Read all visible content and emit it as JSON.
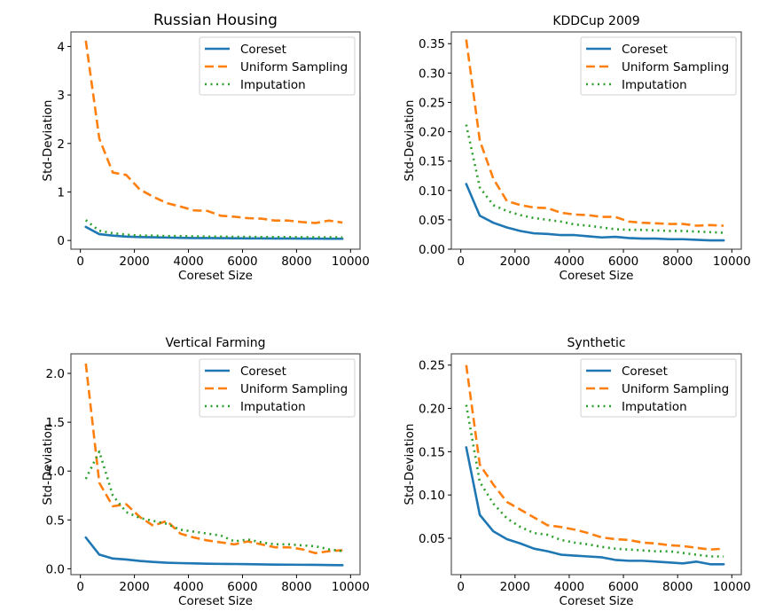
{
  "figure": {
    "legend_labels": [
      "Coreset",
      "Uniform Sampling",
      "Imputation"
    ]
  },
  "chart_data": [
    {
      "type": "line",
      "title": "Russian Housing",
      "xlabel": "Coreset Size",
      "ylabel": "Std-Deviation",
      "xlim": [
        -350,
        10350
      ],
      "ylim": [
        -0.18,
        4.3
      ],
      "xticks": [
        0,
        2000,
        4000,
        6000,
        8000,
        10000
      ],
      "xtick_labels": [
        "0",
        "2000",
        "4000",
        "6000",
        "8000",
        "10000"
      ],
      "yticks": [
        0,
        1,
        2,
        3,
        4
      ],
      "ytick_labels": [
        "0",
        "1",
        "2",
        "3",
        "4"
      ],
      "grid": false,
      "legend": "top-right",
      "x": [
        200,
        700,
        1200,
        1700,
        2200,
        2700,
        3200,
        3700,
        4200,
        4700,
        5200,
        5700,
        6200,
        6700,
        7200,
        7700,
        8200,
        8700,
        9200,
        9700
      ],
      "series": [
        {
          "name": "Coreset",
          "color": "#1f77b4",
          "style": "solid",
          "values": [
            0.28,
            0.13,
            0.1,
            0.08,
            0.07,
            0.065,
            0.06,
            0.055,
            0.05,
            0.05,
            0.048,
            0.045,
            0.043,
            0.042,
            0.04,
            0.04,
            0.038,
            0.037,
            0.036,
            0.035
          ]
        },
        {
          "name": "Uniform Sampling",
          "color": "#ff7f0e",
          "style": "dashed",
          "values": [
            4.12,
            2.1,
            1.4,
            1.35,
            1.05,
            0.9,
            0.77,
            0.7,
            0.62,
            0.61,
            0.51,
            0.49,
            0.46,
            0.45,
            0.41,
            0.41,
            0.38,
            0.36,
            0.41,
            0.37
          ]
        },
        {
          "name": "Imputation",
          "color": "#2ca02c",
          "style": "dotted",
          "values": [
            0.42,
            0.2,
            0.15,
            0.12,
            0.1,
            0.1,
            0.09,
            0.09,
            0.085,
            0.08,
            0.08,
            0.075,
            0.075,
            0.07,
            0.07,
            0.07,
            0.068,
            0.066,
            0.065,
            0.065
          ]
        }
      ]
    },
    {
      "type": "line",
      "title": "KDDCup 2009",
      "xlabel": "Coreset Size",
      "ylabel": "Std-Deviation",
      "xlim": [
        -350,
        10350
      ],
      "ylim": [
        0.0,
        0.37
      ],
      "xticks": [
        0,
        2000,
        4000,
        6000,
        8000,
        10000
      ],
      "xtick_labels": [
        "0",
        "2000",
        "4000",
        "6000",
        "8000",
        "10000"
      ],
      "yticks": [
        0.0,
        0.05,
        0.1,
        0.15,
        0.2,
        0.25,
        0.3,
        0.35
      ],
      "ytick_labels": [
        "0.00",
        "0.05",
        "0.10",
        "0.15",
        "0.20",
        "0.25",
        "0.30",
        "0.35"
      ],
      "grid": false,
      "legend": "top-right",
      "x": [
        200,
        700,
        1200,
        1700,
        2200,
        2700,
        3200,
        3700,
        4200,
        4700,
        5200,
        5700,
        6200,
        6700,
        7200,
        7700,
        8200,
        8700,
        9200,
        9700
      ],
      "series": [
        {
          "name": "Coreset",
          "color": "#1f77b4",
          "style": "solid",
          "values": [
            0.111,
            0.057,
            0.045,
            0.037,
            0.031,
            0.027,
            0.026,
            0.024,
            0.024,
            0.022,
            0.02,
            0.021,
            0.019,
            0.018,
            0.018,
            0.017,
            0.017,
            0.016,
            0.015,
            0.015
          ]
        },
        {
          "name": "Uniform Sampling",
          "color": "#ff7f0e",
          "style": "dashed",
          "values": [
            0.357,
            0.185,
            0.12,
            0.082,
            0.075,
            0.071,
            0.07,
            0.062,
            0.059,
            0.058,
            0.055,
            0.055,
            0.047,
            0.045,
            0.044,
            0.043,
            0.043,
            0.04,
            0.041,
            0.04
          ]
        },
        {
          "name": "Imputation",
          "color": "#2ca02c",
          "style": "dotted",
          "values": [
            0.212,
            0.105,
            0.075,
            0.065,
            0.058,
            0.053,
            0.05,
            0.047,
            0.042,
            0.04,
            0.037,
            0.034,
            0.033,
            0.033,
            0.032,
            0.031,
            0.031,
            0.03,
            0.029,
            0.028
          ]
        }
      ]
    },
    {
      "type": "line",
      "title": "Vertical Farming",
      "xlabel": "Coreset Size",
      "ylabel": "Std-Deviation",
      "xlim": [
        -350,
        10350
      ],
      "ylim": [
        -0.06,
        2.2
      ],
      "xticks": [
        0,
        2000,
        4000,
        6000,
        8000,
        10000
      ],
      "xtick_labels": [
        "0",
        "2000",
        "4000",
        "6000",
        "8000",
        "10000"
      ],
      "yticks": [
        0.0,
        0.5,
        1.0,
        1.5,
        2.0
      ],
      "ytick_labels": [
        "0.0",
        "0.5",
        "1.0",
        "1.5",
        "2.0"
      ],
      "grid": false,
      "legend": "top-right",
      "x": [
        200,
        700,
        1200,
        1700,
        2200,
        2700,
        3200,
        3700,
        4200,
        4700,
        5200,
        5700,
        6200,
        6700,
        7200,
        7700,
        8200,
        8700,
        9200,
        9700
      ],
      "series": [
        {
          "name": "Coreset",
          "color": "#1f77b4",
          "style": "solid",
          "values": [
            0.32,
            0.145,
            0.105,
            0.095,
            0.08,
            0.07,
            0.062,
            0.058,
            0.055,
            0.052,
            0.05,
            0.049,
            0.047,
            0.045,
            0.043,
            0.042,
            0.041,
            0.04,
            0.038,
            0.037
          ]
        },
        {
          "name": "Uniform Sampling",
          "color": "#ff7f0e",
          "style": "dashed",
          "values": [
            2.1,
            0.88,
            0.64,
            0.66,
            0.53,
            0.44,
            0.49,
            0.36,
            0.32,
            0.29,
            0.27,
            0.25,
            0.28,
            0.25,
            0.22,
            0.22,
            0.2,
            0.16,
            0.18,
            0.19
          ]
        },
        {
          "name": "Imputation",
          "color": "#2ca02c",
          "style": "dotted",
          "values": [
            0.92,
            1.2,
            0.75,
            0.58,
            0.52,
            0.49,
            0.46,
            0.4,
            0.38,
            0.36,
            0.34,
            0.28,
            0.3,
            0.27,
            0.25,
            0.25,
            0.24,
            0.23,
            0.2,
            0.18
          ]
        }
      ]
    },
    {
      "type": "line",
      "title": "Synthetic",
      "xlabel": "Coreset Size",
      "ylabel": "Std-Deviation",
      "xlim": [
        -350,
        10350
      ],
      "ylim": [
        0.008,
        0.263
      ],
      "xticks": [
        0,
        2000,
        4000,
        6000,
        8000,
        10000
      ],
      "xtick_labels": [
        "0",
        "2000",
        "4000",
        "6000",
        "8000",
        "10000"
      ],
      "yticks": [
        0.05,
        0.1,
        0.15,
        0.2,
        0.25
      ],
      "ytick_labels": [
        "0.05",
        "0.10",
        "0.15",
        "0.20",
        "0.25"
      ],
      "grid": false,
      "legend": "top-right",
      "x": [
        200,
        700,
        1200,
        1700,
        2200,
        2700,
        3200,
        3700,
        4200,
        4700,
        5200,
        5700,
        6200,
        6700,
        7200,
        7700,
        8200,
        8700,
        9200,
        9700
      ],
      "series": [
        {
          "name": "Coreset",
          "color": "#1f77b4",
          "style": "solid",
          "values": [
            0.155,
            0.077,
            0.058,
            0.049,
            0.044,
            0.038,
            0.035,
            0.031,
            0.03,
            0.029,
            0.028,
            0.025,
            0.024,
            0.024,
            0.023,
            0.022,
            0.021,
            0.023,
            0.02,
            0.02
          ]
        },
        {
          "name": "Uniform Sampling",
          "color": "#ff7f0e",
          "style": "dashed",
          "values": [
            0.25,
            0.135,
            0.112,
            0.092,
            0.083,
            0.074,
            0.065,
            0.063,
            0.06,
            0.056,
            0.051,
            0.049,
            0.048,
            0.045,
            0.044,
            0.042,
            0.041,
            0.039,
            0.037,
            0.038
          ]
        },
        {
          "name": "Imputation",
          "color": "#2ca02c",
          "style": "dotted",
          "values": [
            0.204,
            0.115,
            0.09,
            0.073,
            0.063,
            0.056,
            0.054,
            0.048,
            0.045,
            0.043,
            0.04,
            0.038,
            0.037,
            0.036,
            0.035,
            0.035,
            0.033,
            0.031,
            0.029,
            0.029
          ]
        }
      ]
    }
  ]
}
